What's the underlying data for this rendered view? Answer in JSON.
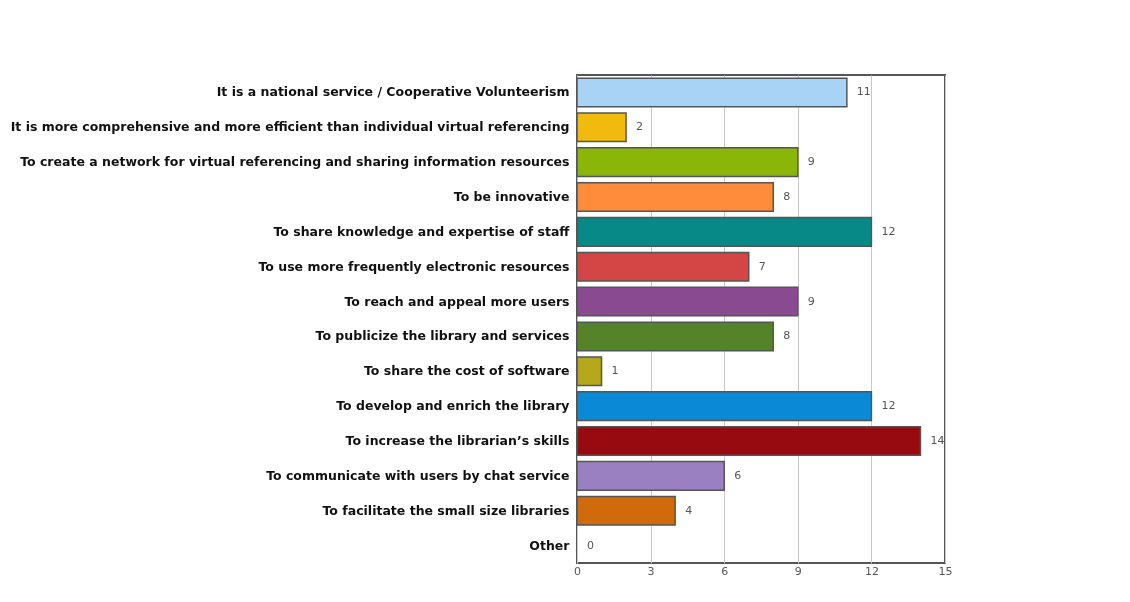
{
  "chart_data": {
    "type": "bar",
    "orientation": "horizontal",
    "categories": [
      "It is a national service / Cooperative Volunteerism",
      "It is more comprehensive and more efficient than individual virtual referencing",
      "To create a network for virtual referencing and sharing information resources",
      "To be innovative",
      "To share knowledge and expertise of staff",
      "To use more frequently electronic resources",
      "To reach and appeal more users",
      "To publicize the library and services",
      "To share the cost of software",
      "To develop and enrich the library",
      "To increase the librarian’s skills",
      "To communicate with users by chat service",
      "To facilitate the small size libraries",
      "Other"
    ],
    "values": [
      11,
      2,
      9,
      8,
      12,
      7,
      9,
      8,
      1,
      12,
      14,
      6,
      4,
      0
    ],
    "colors": [
      "#a9d3f5",
      "#f2b90f",
      "#8ab60a",
      "#ff8c3a",
      "#078a87",
      "#d44545",
      "#8a4a90",
      "#54832a",
      "#b5a81c",
      "#0a8ad6",
      "#960a10",
      "#9a80c0",
      "#d06a0a",
      "#cccccc"
    ],
    "xlim": [
      0,
      15
    ],
    "xticks": [
      0,
      3,
      6,
      9,
      12,
      15
    ],
    "grid": "x",
    "data_labels": true
  }
}
